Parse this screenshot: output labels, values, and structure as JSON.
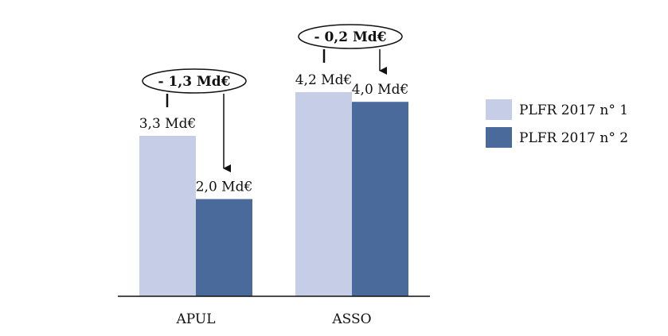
{
  "chart_data": {
    "type": "bar",
    "categories": [
      "APUL",
      "ASSO"
    ],
    "series": [
      {
        "name": "PLFR 2017 n° 1",
        "values": [
          3.3,
          4.2
        ],
        "labels": [
          "3,3 Md€",
          "4,2 Md€"
        ],
        "color": "#c6cde6"
      },
      {
        "name": "PLFR 2017 n° 2",
        "values": [
          2.0,
          4.0
        ],
        "labels": [
          "2,0 Md€",
          "4,0 Md€"
        ],
        "color": "#4a6a9c"
      }
    ],
    "annotations": [
      "- 1,3 Md€",
      "- 0,2 Md€"
    ],
    "ylim": [
      0,
      5
    ],
    "legend_position": "right"
  }
}
